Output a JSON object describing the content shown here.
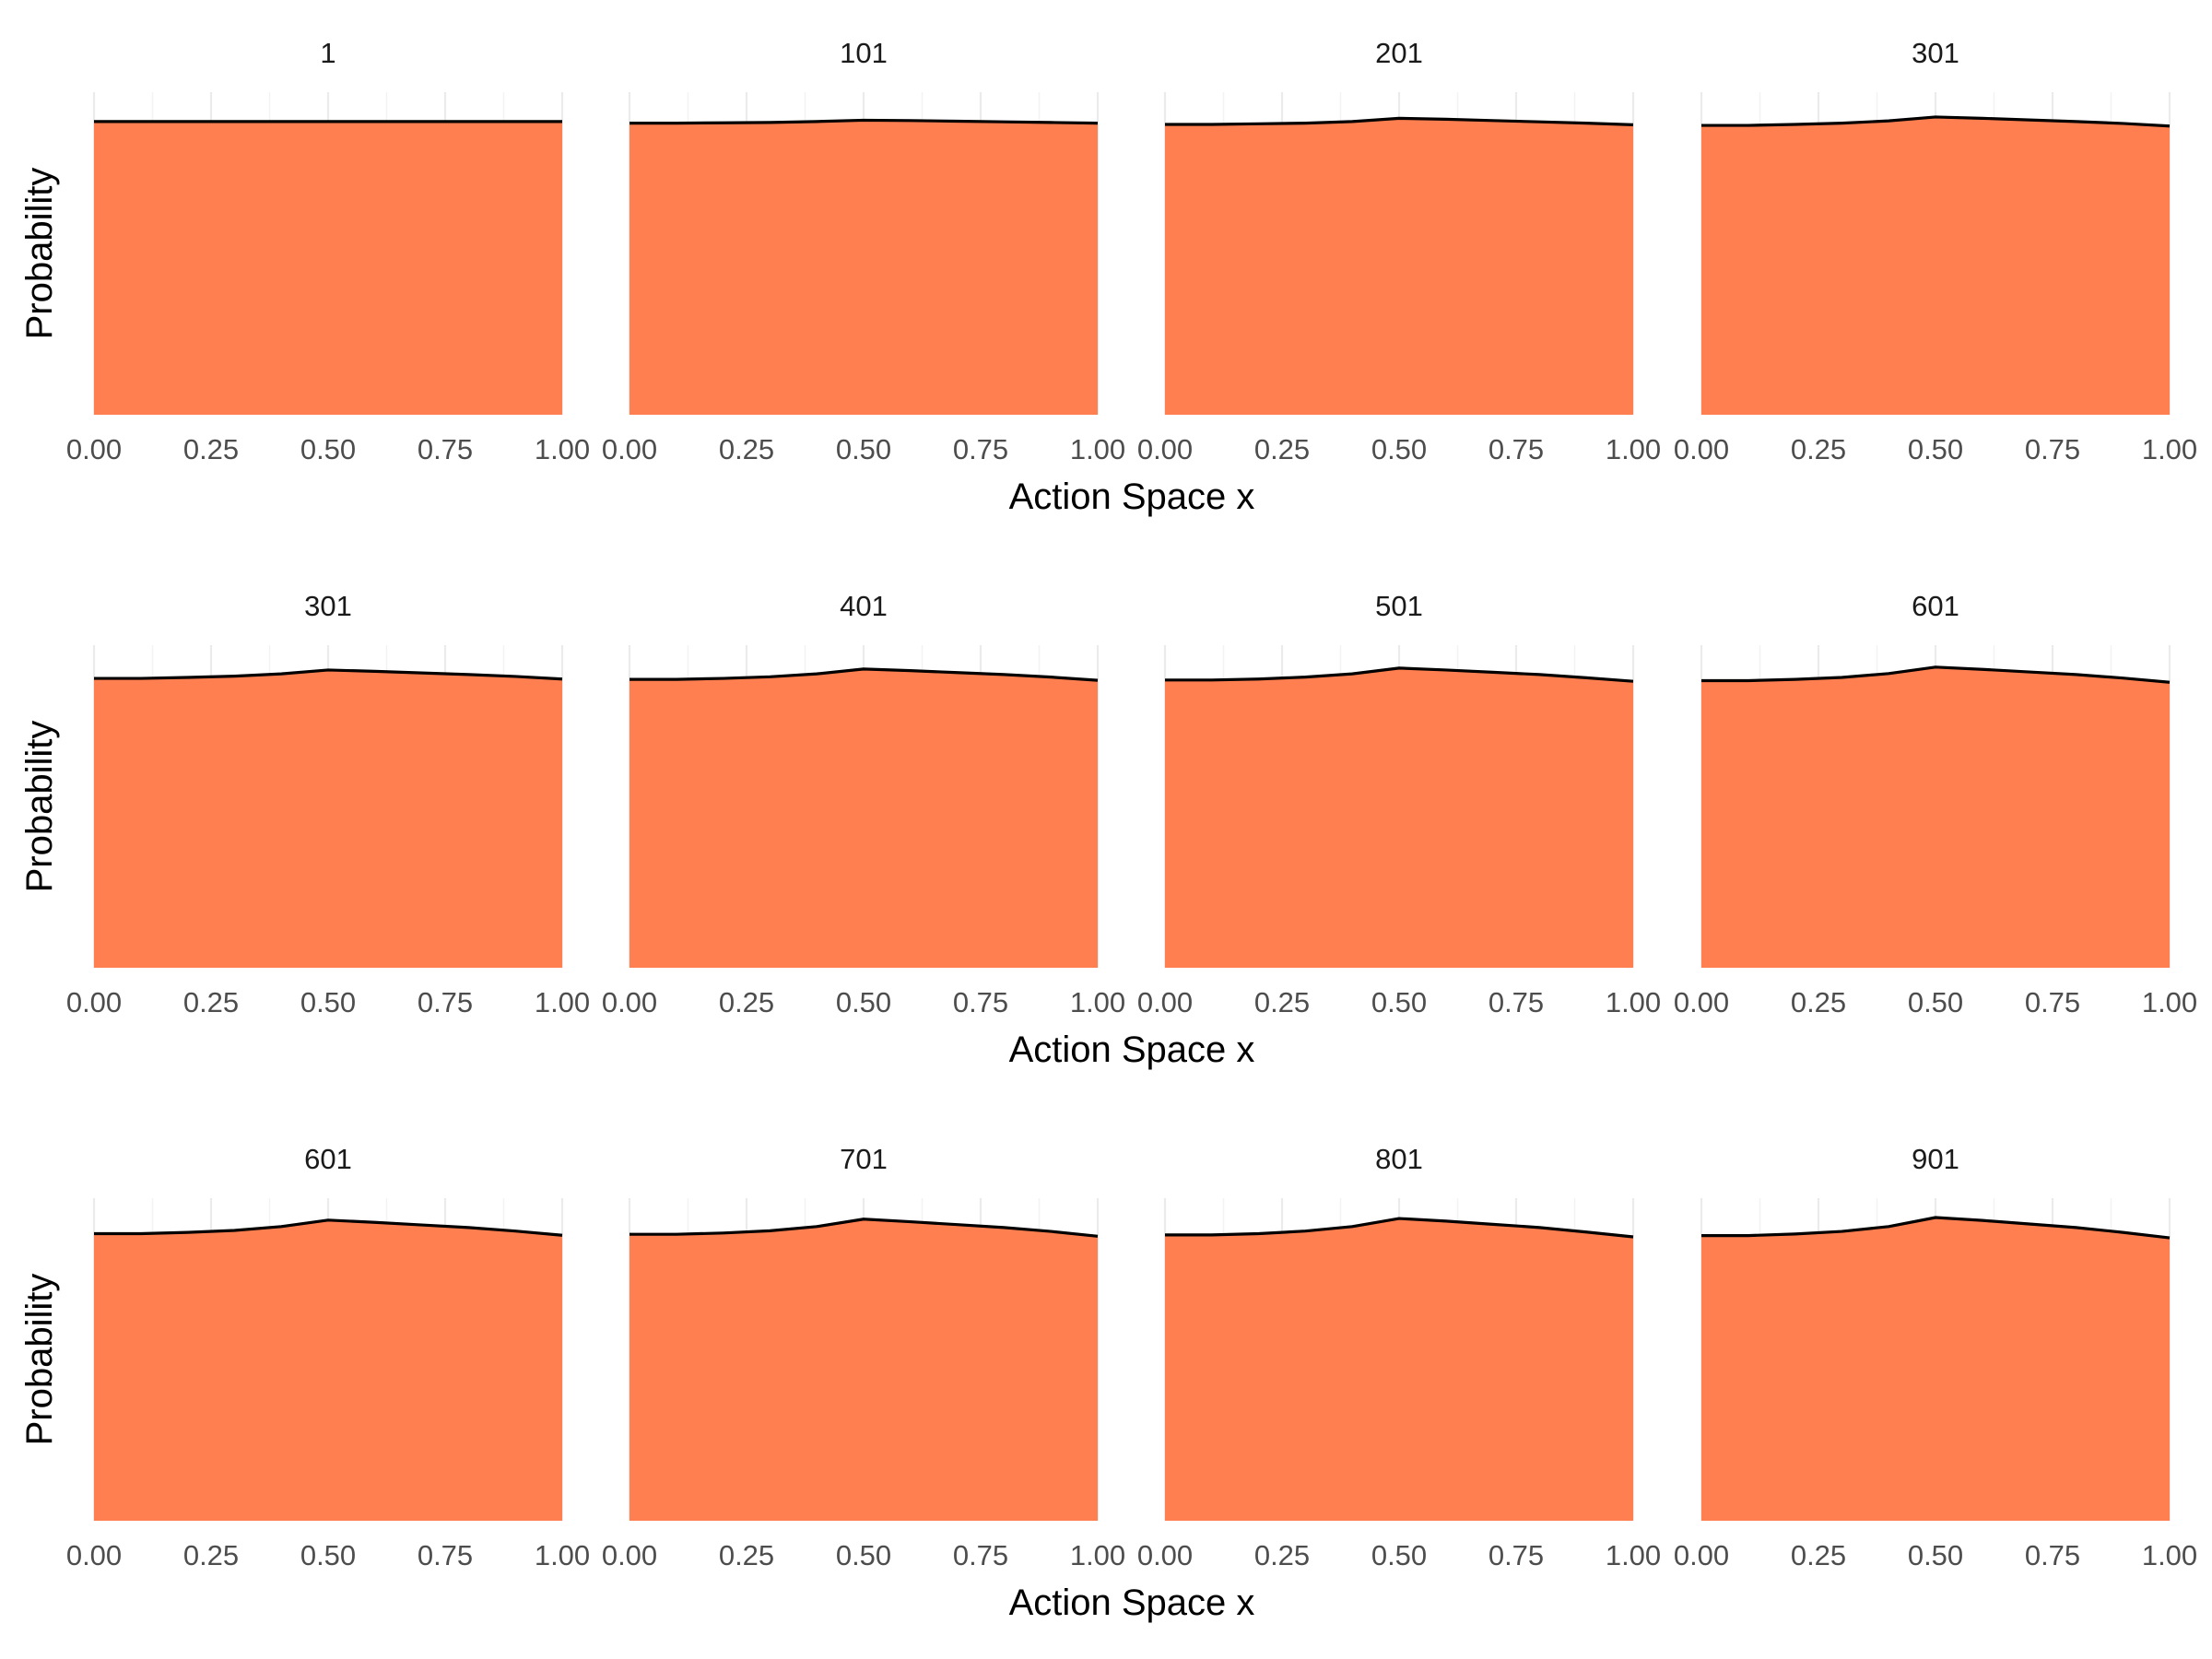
{
  "chart_data": {
    "type": "area",
    "xlabel": "Action Space x",
    "ylabel": "Probability",
    "x": [
      0.0,
      0.1,
      0.2,
      0.3,
      0.4,
      0.5,
      0.6,
      0.7,
      0.8,
      0.9,
      1.0
    ],
    "xlim": [
      0,
      1
    ],
    "x_ticks": [
      "0.00",
      "0.25",
      "0.50",
      "0.75",
      "1.00"
    ],
    "ylim": [
      0,
      0.1
    ],
    "y_ticks_shown": false,
    "grid": true,
    "fill_color": "#FF7F50",
    "line_color": "#000000",
    "rows": [
      {
        "panels": [
          {
            "title": "1",
            "values": [
              0.0909,
              0.0909,
              0.0909,
              0.0909,
              0.0909,
              0.0909,
              0.0909,
              0.0909,
              0.0909,
              0.0909,
              0.0909
            ]
          },
          {
            "title": "101",
            "values": [
              0.0904,
              0.0904,
              0.0905,
              0.0906,
              0.0909,
              0.0913,
              0.0912,
              0.091,
              0.0908,
              0.0906,
              0.0904
            ]
          },
          {
            "title": "201",
            "values": [
              0.09,
              0.09,
              0.0902,
              0.0904,
              0.0909,
              0.0919,
              0.0916,
              0.0912,
              0.0908,
              0.0904,
              0.0899
            ]
          },
          {
            "title": "301",
            "values": [
              0.0897,
              0.0897,
              0.09,
              0.0904,
              0.0911,
              0.0923,
              0.0919,
              0.0914,
              0.0909,
              0.0903,
              0.0895
            ]
          }
        ]
      },
      {
        "panels": [
          {
            "title": "301",
            "values": [
              0.0897,
              0.0897,
              0.09,
              0.0904,
              0.0911,
              0.0923,
              0.0919,
              0.0914,
              0.0909,
              0.0903,
              0.0895
            ]
          },
          {
            "title": "401",
            "values": [
              0.0894,
              0.0894,
              0.0897,
              0.0902,
              0.0911,
              0.0926,
              0.0921,
              0.0915,
              0.0909,
              0.0901,
              0.0891
            ]
          },
          {
            "title": "501",
            "values": [
              0.0892,
              0.0892,
              0.0895,
              0.0901,
              0.0911,
              0.0929,
              0.0923,
              0.0916,
              0.0909,
              0.0899,
              0.0888
            ]
          },
          {
            "title": "601",
            "values": [
              0.089,
              0.089,
              0.0894,
              0.09,
              0.0912,
              0.0932,
              0.0925,
              0.0917,
              0.0909,
              0.0898,
              0.0885
            ]
          }
        ]
      },
      {
        "panels": [
          {
            "title": "601",
            "values": [
              0.089,
              0.089,
              0.0894,
              0.09,
              0.0912,
              0.0932,
              0.0925,
              0.0917,
              0.0909,
              0.0898,
              0.0885
            ]
          },
          {
            "title": "701",
            "values": [
              0.0888,
              0.0888,
              0.0892,
              0.0899,
              0.0912,
              0.0935,
              0.0927,
              0.0918,
              0.0909,
              0.0897,
              0.0882
            ]
          },
          {
            "title": "801",
            "values": [
              0.0886,
              0.0886,
              0.089,
              0.0898,
              0.0912,
              0.0937,
              0.0929,
              0.0919,
              0.0909,
              0.0895,
              0.088
            ]
          },
          {
            "title": "901",
            "values": [
              0.0884,
              0.0884,
              0.0889,
              0.0897,
              0.0912,
              0.094,
              0.0931,
              0.092,
              0.0909,
              0.0894,
              0.0877
            ]
          }
        ]
      }
    ]
  }
}
